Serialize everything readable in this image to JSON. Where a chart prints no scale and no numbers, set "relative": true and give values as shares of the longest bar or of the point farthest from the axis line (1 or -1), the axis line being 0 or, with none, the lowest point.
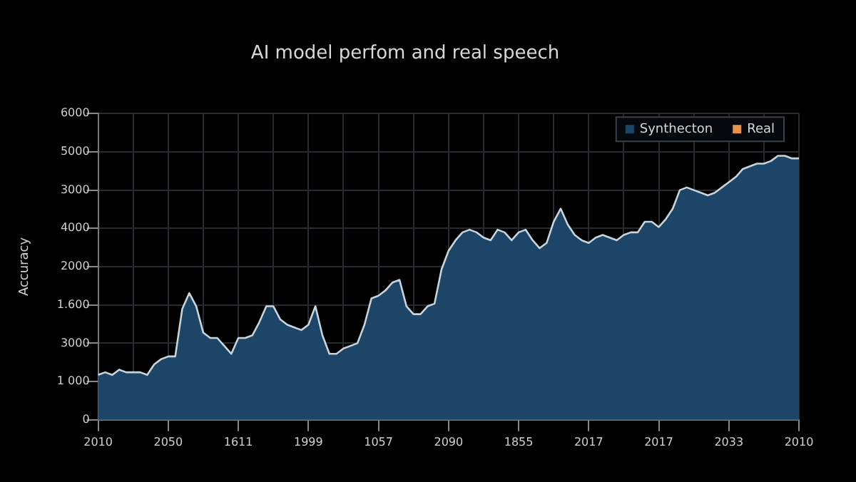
{
  "chart_data": {
    "type": "area",
    "title": "AI model perfom and real speech",
    "ylabel": "Accuracy",
    "relative": true,
    "annotations": [
      "0",
      "1 000",
      "3000",
      "1.600",
      "2000",
      "4000",
      "3000",
      "5000",
      "6000"
    ],
    "categories": [
      "2010",
      null,
      null,
      null,
      null,
      null,
      null,
      null,
      null,
      null,
      "2050",
      null,
      null,
      null,
      null,
      null,
      null,
      null,
      null,
      null,
      "1611",
      null,
      null,
      null,
      null,
      null,
      null,
      null,
      null,
      null,
      "1999",
      null,
      null,
      null,
      null,
      null,
      null,
      null,
      null,
      null,
      "1057",
      null,
      null,
      null,
      null,
      null,
      null,
      null,
      null,
      null,
      "2090",
      null,
      null,
      null,
      null,
      null,
      null,
      null,
      null,
      null,
      "1855",
      null,
      null,
      null,
      null,
      null,
      null,
      null,
      null,
      null,
      "2017",
      null,
      null,
      null,
      null,
      null,
      null,
      null,
      null,
      null,
      "2017",
      null,
      null,
      null,
      null,
      null,
      null,
      null,
      null,
      null,
      "2033",
      null,
      null,
      null,
      null,
      null,
      null,
      null,
      null,
      null,
      "2010"
    ],
    "grid": true,
    "legend": "top right",
    "series": [
      {
        "name": "Synthecton",
        "color": "#1d4568",
        "values": [
          0.17,
          0.18,
          0.17,
          0.19,
          0.18,
          0.18,
          0.18,
          0.17,
          0.21,
          0.23,
          0.24,
          0.24,
          0.42,
          0.48,
          0.43,
          0.33,
          0.31,
          0.31,
          0.28,
          0.25,
          0.31,
          0.31,
          0.32,
          0.37,
          0.43,
          0.43,
          0.38,
          0.36,
          0.35,
          0.34,
          0.36,
          0.43,
          0.32,
          0.25,
          0.25,
          0.27,
          0.28,
          0.29,
          0.36,
          0.46,
          0.47,
          0.49,
          0.52,
          0.53,
          0.43,
          0.4,
          0.4,
          0.43,
          0.44,
          0.57,
          0.64,
          0.68,
          0.71,
          0.72,
          0.71,
          0.69,
          0.68,
          0.72,
          0.71,
          0.68,
          0.71,
          0.72,
          0.68,
          0.65,
          0.67,
          0.75,
          0.8,
          0.74,
          0.7,
          0.68,
          0.67,
          0.69,
          0.7,
          0.69,
          0.68,
          0.7,
          0.71,
          0.71,
          0.75,
          0.75,
          0.73,
          0.76,
          0.8,
          0.87,
          0.88,
          0.87,
          0.86,
          0.85,
          0.86,
          0.88,
          0.9,
          0.92,
          0.95,
          0.96,
          0.97,
          0.97,
          0.98,
          1,
          1,
          0.99,
          0.99
        ]
      },
      {
        "name": "Real",
        "color": "#e8914a",
        "values": [
          null,
          null,
          null,
          null,
          null,
          null,
          null,
          null,
          null,
          null,
          null,
          null,
          null,
          null,
          null,
          null,
          null,
          null,
          null,
          null,
          null,
          null,
          null,
          null,
          null,
          null,
          null,
          null,
          null,
          null,
          null,
          null,
          null,
          null,
          null,
          null,
          null,
          null,
          null,
          null,
          null,
          null,
          null,
          null,
          null,
          null,
          null,
          null,
          null,
          null,
          null,
          null,
          null,
          null,
          null,
          null,
          null,
          null,
          null,
          null,
          null,
          null,
          null,
          null,
          null,
          null,
          null,
          null,
          null,
          null,
          null,
          null,
          null,
          null,
          null,
          null,
          null,
          null,
          null,
          null,
          null,
          null,
          null,
          null,
          null,
          null,
          null,
          null,
          null,
          null,
          null,
          null,
          null,
          null,
          null,
          null,
          null,
          null,
          null,
          null,
          null
        ]
      }
    ]
  }
}
